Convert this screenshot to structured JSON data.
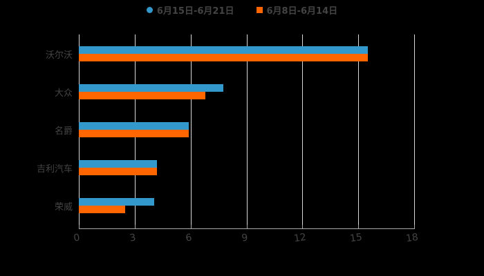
{
  "chart_data": {
    "type": "bar",
    "orientation": "horizontal",
    "title": "",
    "xlabel": "",
    "ylabel": "",
    "categories": [
      "沃尔沃",
      "大众",
      "名爵",
      "吉利汽车",
      "荣威"
    ],
    "series": [
      {
        "name": "6月15日-6月21日",
        "color": "#3399cc",
        "marker": "circle",
        "values": [
          15.5,
          7.75,
          5.9,
          4.2,
          4.05
        ]
      },
      {
        "name": "6月8日-6月14日",
        "color": "#ff6600",
        "marker": "square",
        "values": [
          15.5,
          6.8,
          5.9,
          4.2,
          2.5
        ]
      }
    ],
    "xticks": [
      "0",
      "3",
      "6",
      "9",
      "12",
      "15",
      "18"
    ],
    "xlim": [
      0,
      18
    ],
    "grid": "vertical",
    "legend_position": "top"
  },
  "legend": {
    "items": [
      {
        "label": "6月15日-6月21日",
        "color": "#3399cc"
      },
      {
        "label": "6月8日-6月14日",
        "color": "#ff6600"
      }
    ]
  }
}
